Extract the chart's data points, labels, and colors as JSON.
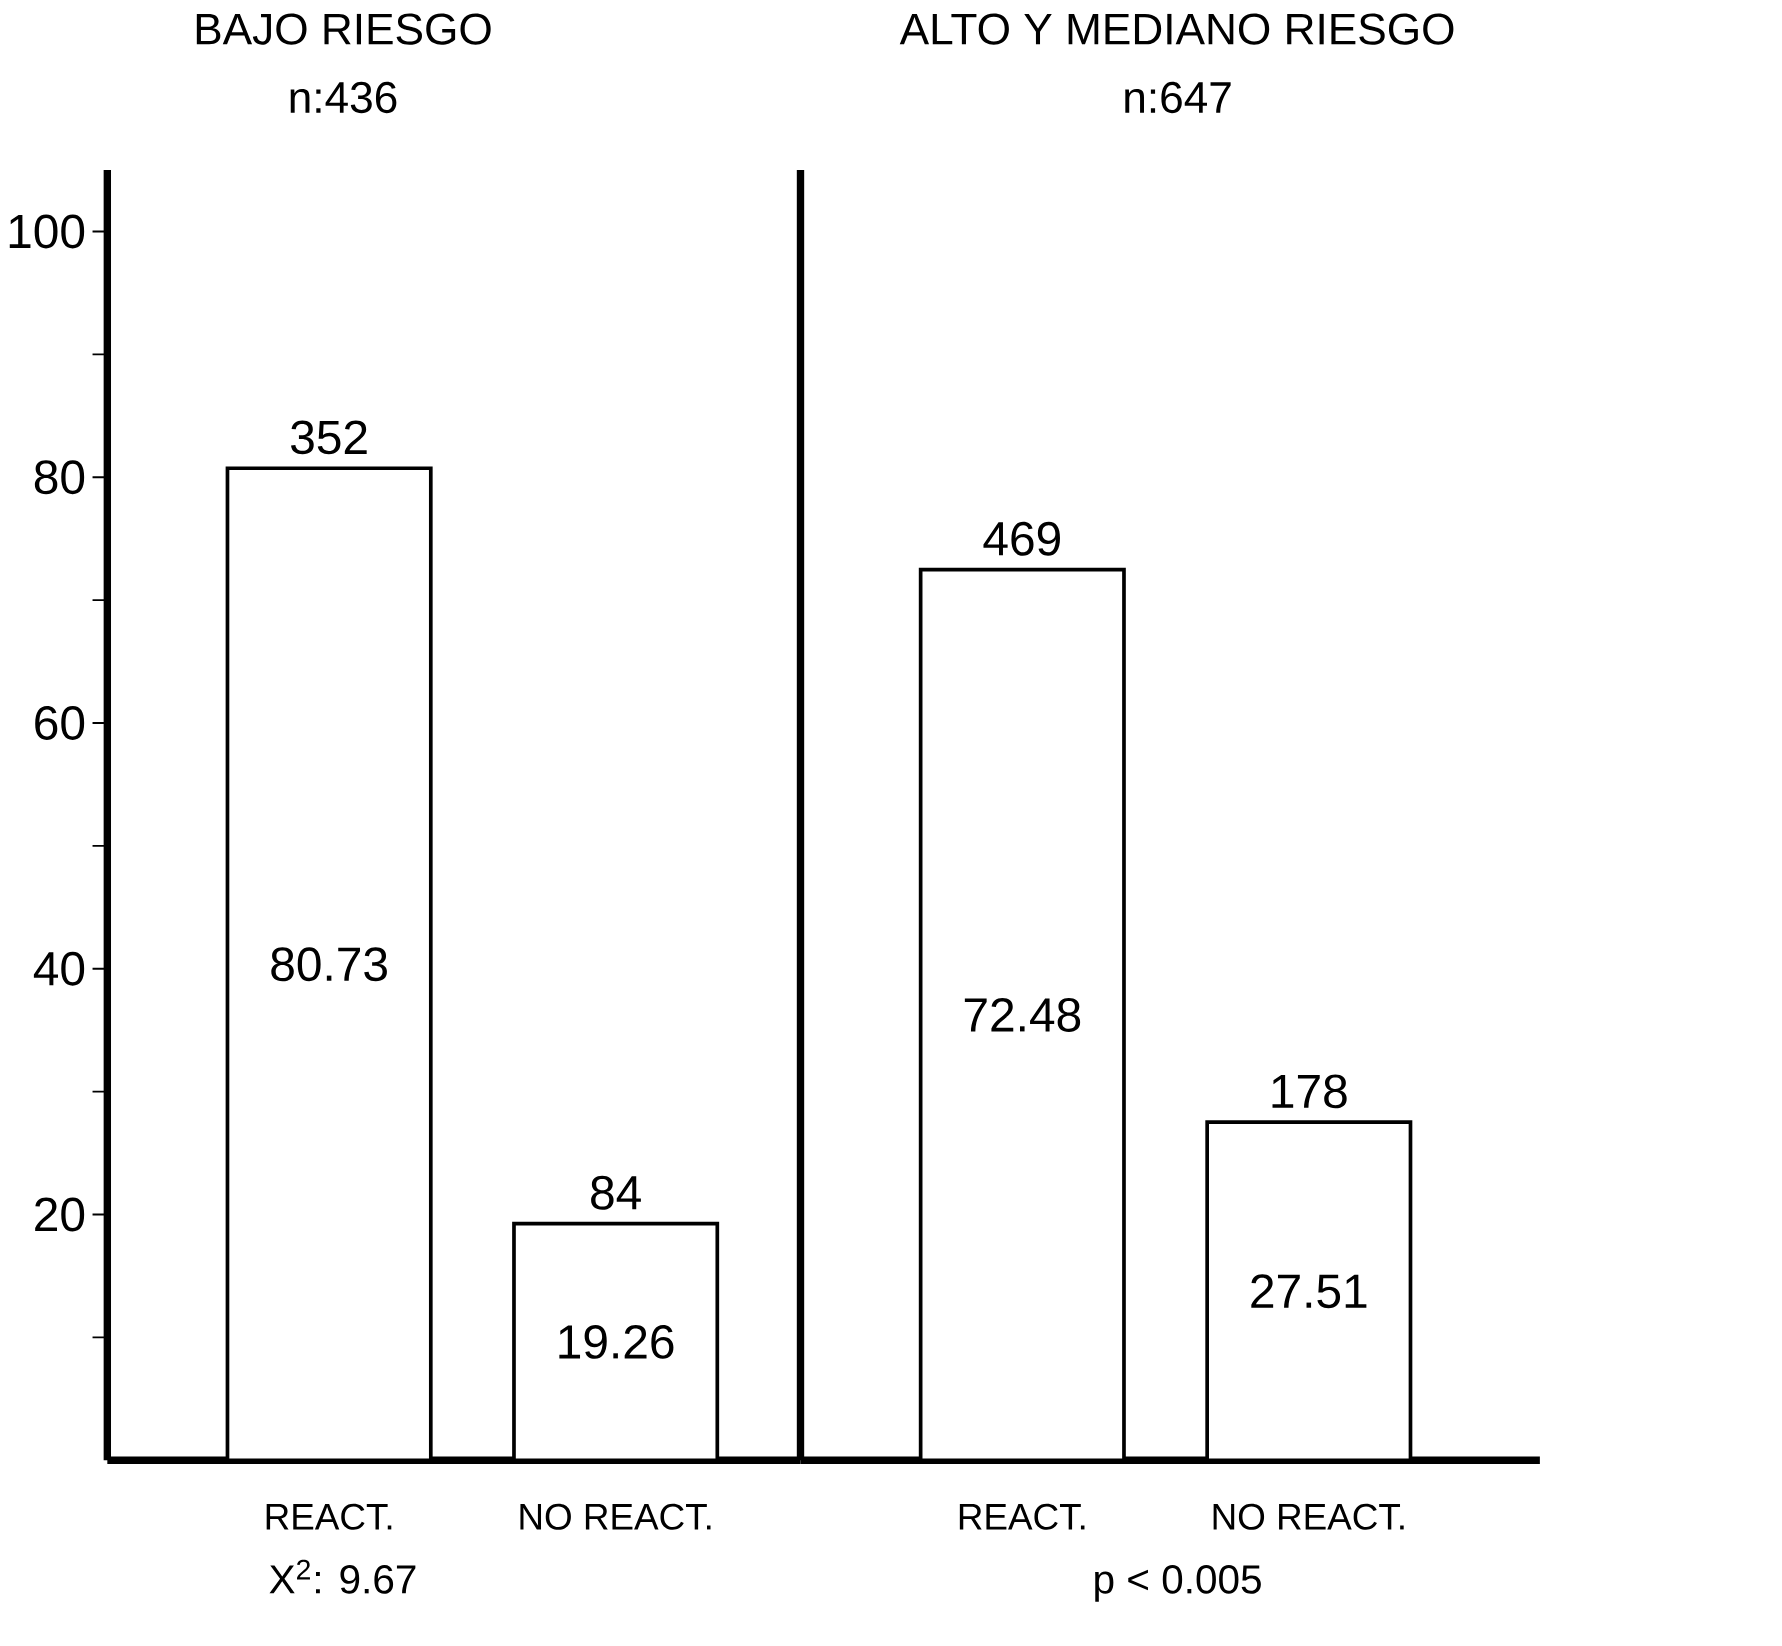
{
  "chart_data": [
    {
      "type": "bar",
      "title": "BAJO RIESGO",
      "subtitle": "n:436",
      "categories": [
        "REACT.",
        "NO REACT."
      ],
      "values": [
        80.73,
        19.26
      ],
      "color": "#ffffff",
      "data_labels": true,
      "ylim": [
        0,
        105
      ],
      "yticks": [
        {
          "value": 10,
          "label": null
        },
        20,
        {
          "value": 30,
          "label": null
        },
        40,
        {
          "value": 50,
          "label": null
        },
        60,
        {
          "value": 70,
          "label": null
        },
        80,
        {
          "value": 90,
          "label": null
        },
        100
      ],
      "annotations": [
        {
          "text": "352",
          "x": "REACT.",
          "y": 80.73
        },
        {
          "text": "84",
          "x": "NO REACT.",
          "y": 19.26
        },
        "X$^{2}$: 9.67"
      ]
    },
    {
      "type": "bar",
      "title": "ALTO Y MEDIANO RIESGO",
      "subtitle": "n:647",
      "categories": [
        "REACT.",
        "NO REACT."
      ],
      "values": [
        72.48,
        27.51
      ],
      "color": "#ffffff",
      "data_labels": true,
      "ylim": [
        0,
        105
      ],
      "tick_labels": "x",
      "annotations": [
        {
          "text": "469",
          "x": "REACT.",
          "y": 72.48
        },
        {
          "text": "178",
          "x": "NO REACT.",
          "y": 27.51
        },
        "p < 0.005"
      ]
    }
  ]
}
